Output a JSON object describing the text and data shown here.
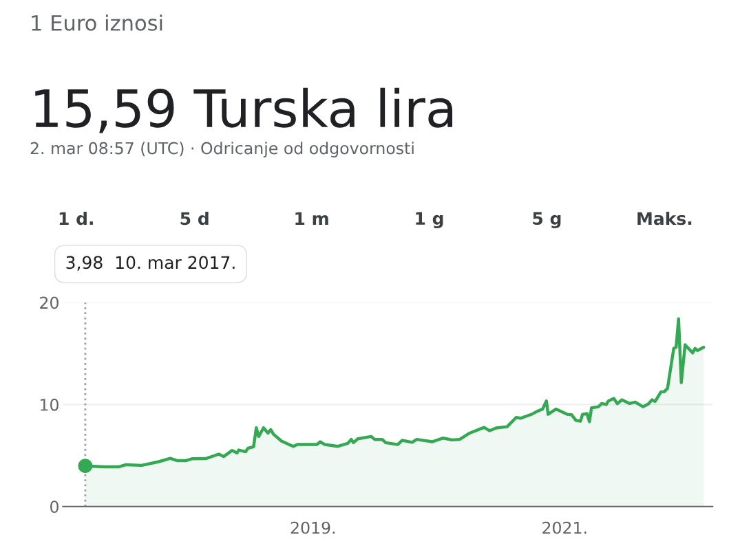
{
  "chart_data": {
    "type": "area",
    "title": "15,59 Turska lira",
    "subtitle": "2. mar 08:57 (UTC) · Odricanje od odgovornosti",
    "annotations": [
      "1 Euro iznosi",
      "1 d.",
      "5 d",
      "1 m",
      "1 g",
      "5 g",
      "Maks.",
      "3,98  10. mar 2017."
    ],
    "x": [
      "2017-03-10",
      "2017-05-03",
      "2017-06-17",
      "2017-07-06",
      "2017-08-21",
      "2017-10-10",
      "2017-11-12",
      "2017-12-02",
      "2017-12-27",
      "2018-01-15",
      "2018-02-23",
      "2018-04-02",
      "2018-04-16",
      "2018-05-11",
      "2018-05-25",
      "2018-05-30",
      "2018-06-19",
      "2018-06-26",
      "2018-07-12",
      "2018-07-20",
      "2018-07-27",
      "2018-08-10",
      "2018-08-23",
      "2018-08-31",
      "2018-09-08",
      "2018-10-01",
      "2018-10-23",
      "2018-11-05",
      "2018-11-16",
      "2019-01-12",
      "2019-01-22",
      "2019-02-04",
      "2019-03-14",
      "2019-04-12",
      "2019-04-22",
      "2019-04-28",
      "2019-05-11",
      "2019-06-19",
      "2019-06-29",
      "2019-07-21",
      "2019-07-31",
      "2019-09-04",
      "2019-09-17",
      "2019-10-16",
      "2019-10-29",
      "2019-12-13",
      "2020-01-14",
      "2020-02-09",
      "2020-03-02",
      "2020-03-31",
      "2020-05-12",
      "2020-05-28",
      "2020-06-16",
      "2020-07-18",
      "2020-08-13",
      "2020-08-26",
      "2020-09-27",
      "2020-10-13",
      "2020-10-29",
      "2020-11-09",
      "2020-11-14",
      "2020-12-07",
      "2021-01-09",
      "2021-01-21",
      "2021-02-03",
      "2021-02-16",
      "2021-02-22",
      "2021-03-07",
      "2021-03-14",
      "2021-03-20",
      "2021-04-09",
      "2021-04-19",
      "2021-05-02",
      "2021-05-08",
      "2021-05-24",
      "2021-06-03",
      "2021-06-16",
      "2021-07-09",
      "2021-07-25",
      "2021-08-17",
      "2021-09-02",
      "2021-09-12",
      "2021-09-21",
      "2021-10-08",
      "2021-10-17",
      "2021-10-27",
      "2021-11-14",
      "2021-11-21",
      "2021-11-28",
      "2021-12-06",
      "2021-12-17",
      "2022-01-08",
      "2022-01-15",
      "2022-01-22",
      "2022-02-09"
    ],
    "series": [
      {
        "color": "#34a853",
        "values": [
          3.98,
          3.89,
          3.9,
          4.1,
          4.04,
          4.4,
          4.73,
          4.5,
          4.5,
          4.69,
          4.7,
          5.14,
          4.9,
          5.5,
          5.25,
          5.54,
          5.37,
          5.72,
          5.86,
          7.72,
          6.87,
          7.72,
          7.2,
          7.54,
          7.09,
          6.42,
          6.08,
          5.9,
          6.08,
          6.08,
          6.35,
          6.08,
          5.9,
          6.2,
          6.58,
          6.26,
          6.64,
          6.87,
          6.58,
          6.58,
          6.26,
          6.08,
          6.49,
          6.3,
          6.58,
          6.35,
          6.71,
          6.53,
          6.58,
          7.2,
          7.76,
          7.43,
          7.7,
          7.83,
          8.73,
          8.66,
          9.04,
          9.33,
          9.56,
          10.35,
          9.04,
          9.56,
          9.04,
          9.0,
          8.44,
          8.37,
          9.04,
          9.11,
          8.32,
          9.67,
          9.78,
          10.1,
          10.0,
          10.35,
          10.6,
          10.08,
          10.46,
          10.1,
          10.24,
          9.78,
          10.08,
          10.46,
          10.3,
          11.25,
          11.25,
          11.58,
          15.5,
          15.62,
          18.4,
          12.14,
          15.85,
          15.06,
          15.5,
          15.29,
          15.62
        ]
      }
    ],
    "ref_lines": [
      {
        "axis": "x",
        "value": "2017-03-10",
        "color": "#9e9e9e",
        "line_style": "dotted"
      }
    ],
    "xlim": [
      "2017-01-04",
      "2022-03-07"
    ],
    "xticks": [
      {
        "value": "2019-01-01",
        "label": "2019."
      },
      {
        "value": "2021-01-01",
        "label": "2021."
      }
    ],
    "ylim": [
      0,
      20
    ],
    "yticks": [
      0,
      10,
      20
    ],
    "grid": "y",
    "legend": false
  }
}
